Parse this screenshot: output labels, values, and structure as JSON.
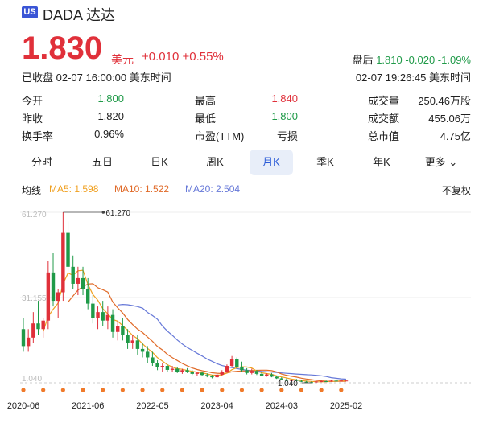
{
  "header": {
    "market_badge": "US",
    "ticker_name": "DADA 达达",
    "price": "1.830",
    "currency": "美元",
    "change": "+0.010 +0.55%",
    "status": "已收盘 02-07 16:00:00 美东时间",
    "after_hours_label": "盘后",
    "after_hours_value": "1.810 -0.020 -1.09%",
    "after_hours_time": "02-07 19:26:45 美东时间"
  },
  "stats": [
    {
      "label": "今开",
      "value": "1.800",
      "color": "#1f9a48"
    },
    {
      "label": "昨收",
      "value": "1.820",
      "color": "#222222"
    },
    {
      "label": "换手率",
      "value": "0.96%",
      "color": "#222222"
    },
    {
      "label": "最高",
      "value": "1.840",
      "color": "#e0303a"
    },
    {
      "label": "最低",
      "value": "1.800",
      "color": "#1f9a48"
    },
    {
      "label": "市盈(TTM)",
      "value": "亏损",
      "color": "#222222"
    },
    {
      "label": "成交量",
      "value": "250.46万股",
      "color": "#222222"
    },
    {
      "label": "成交额",
      "value": "455.06万",
      "color": "#222222"
    },
    {
      "label": "总市值",
      "value": "4.75亿",
      "color": "#222222"
    }
  ],
  "tabs": [
    {
      "label": "分时",
      "active": false
    },
    {
      "label": "五日",
      "active": false
    },
    {
      "label": "日K",
      "active": false
    },
    {
      "label": "周K",
      "active": false
    },
    {
      "label": "月K",
      "active": true
    },
    {
      "label": "季K",
      "active": false
    },
    {
      "label": "年K",
      "active": false
    },
    {
      "label": "更多",
      "active": false
    }
  ],
  "indicators": {
    "label": "均线",
    "ma5": "MA5: 1.598",
    "ma10": "MA10: 1.522",
    "ma20": "MA20: 2.504",
    "adjust": "不复权"
  },
  "colors": {
    "up": "#e0303a",
    "down": "#1f9a48",
    "ma5": "#f0a020",
    "ma10": "#e06a28",
    "ma20": "#6678d8",
    "accent": "#2a5bd7"
  },
  "chart_data": {
    "type": "candlestick",
    "y_tick_labels": [
      "61.270",
      "31.155",
      "1.040"
    ],
    "high_annotation": "61.270",
    "low_annotation": "1.040",
    "x_tick_labels": [
      "2020-06",
      "2021-06",
      "2022-05",
      "2023-04",
      "2024-03",
      "2025-02"
    ],
    "ylim": [
      1.04,
      61.27
    ],
    "candles": [
      {
        "o": 20,
        "h": 24,
        "l": 12,
        "c": 14
      },
      {
        "o": 14,
        "h": 20,
        "l": 12,
        "c": 17
      },
      {
        "o": 17,
        "h": 26,
        "l": 15,
        "c": 22
      },
      {
        "o": 22,
        "h": 30,
        "l": 18,
        "c": 20
      },
      {
        "o": 20,
        "h": 24,
        "l": 17,
        "c": 23
      },
      {
        "o": 23,
        "h": 44,
        "l": 20,
        "c": 40
      },
      {
        "o": 40,
        "h": 47,
        "l": 28,
        "c": 30
      },
      {
        "o": 30,
        "h": 34,
        "l": 24,
        "c": 33
      },
      {
        "o": 33,
        "h": 61.27,
        "l": 30,
        "c": 54
      },
      {
        "o": 54,
        "h": 58,
        "l": 40,
        "c": 42
      },
      {
        "o": 42,
        "h": 46,
        "l": 34,
        "c": 36
      },
      {
        "o": 36,
        "h": 42,
        "l": 32,
        "c": 38
      },
      {
        "o": 38,
        "h": 42,
        "l": 32,
        "c": 34
      },
      {
        "o": 34,
        "h": 38,
        "l": 27,
        "c": 29
      },
      {
        "o": 29,
        "h": 32,
        "l": 22,
        "c": 24
      },
      {
        "o": 24,
        "h": 28,
        "l": 20,
        "c": 26
      },
      {
        "o": 26,
        "h": 30,
        "l": 21,
        "c": 23
      },
      {
        "o": 23,
        "h": 28,
        "l": 20,
        "c": 25
      },
      {
        "o": 25,
        "h": 27,
        "l": 17,
        "c": 19
      },
      {
        "o": 19,
        "h": 23,
        "l": 16,
        "c": 21
      },
      {
        "o": 21,
        "h": 24,
        "l": 16,
        "c": 18
      },
      {
        "o": 18,
        "h": 20,
        "l": 13,
        "c": 15
      },
      {
        "o": 15,
        "h": 18,
        "l": 13,
        "c": 16
      },
      {
        "o": 16,
        "h": 18,
        "l": 11,
        "c": 13
      },
      {
        "o": 13,
        "h": 15,
        "l": 10,
        "c": 12
      },
      {
        "o": 12,
        "h": 14,
        "l": 8,
        "c": 10
      },
      {
        "o": 10,
        "h": 12,
        "l": 7,
        "c": 8
      },
      {
        "o": 8,
        "h": 9,
        "l": 5.5,
        "c": 6.5
      },
      {
        "o": 6.5,
        "h": 8,
        "l": 5,
        "c": 7
      },
      {
        "o": 7,
        "h": 7.5,
        "l": 5,
        "c": 5.6
      },
      {
        "o": 5.6,
        "h": 7,
        "l": 4.8,
        "c": 6
      },
      {
        "o": 6,
        "h": 6.5,
        "l": 4.5,
        "c": 5
      },
      {
        "o": 5,
        "h": 6,
        "l": 4.2,
        "c": 5.5
      },
      {
        "o": 5.5,
        "h": 6.2,
        "l": 4.5,
        "c": 4.8
      },
      {
        "o": 4.8,
        "h": 5.5,
        "l": 3.8,
        "c": 4.2
      },
      {
        "o": 4.2,
        "h": 5,
        "l": 3.6,
        "c": 4.6
      },
      {
        "o": 4.6,
        "h": 5,
        "l": 3.4,
        "c": 3.8
      },
      {
        "o": 3.8,
        "h": 4.4,
        "l": 3,
        "c": 3.4
      },
      {
        "o": 3.4,
        "h": 3.8,
        "l": 2.6,
        "c": 3
      },
      {
        "o": 3,
        "h": 4.2,
        "l": 2.8,
        "c": 3.9
      },
      {
        "o": 3.9,
        "h": 5.5,
        "l": 3.5,
        "c": 5
      },
      {
        "o": 5,
        "h": 7.5,
        "l": 4.5,
        "c": 7
      },
      {
        "o": 7,
        "h": 10.5,
        "l": 6.5,
        "c": 9.5
      },
      {
        "o": 9.5,
        "h": 10,
        "l": 6,
        "c": 6.5
      },
      {
        "o": 6.5,
        "h": 8.5,
        "l": 5,
        "c": 5.5
      },
      {
        "o": 5.5,
        "h": 6.2,
        "l": 4,
        "c": 4.5
      },
      {
        "o": 4.5,
        "h": 6,
        "l": 4,
        "c": 5.2
      },
      {
        "o": 5.2,
        "h": 5.6,
        "l": 3.8,
        "c": 4.2
      },
      {
        "o": 4.2,
        "h": 4.8,
        "l": 3.4,
        "c": 3.6
      },
      {
        "o": 3.6,
        "h": 4.4,
        "l": 3.2,
        "c": 4
      },
      {
        "o": 4,
        "h": 4.5,
        "l": 3,
        "c": 3.2
      },
      {
        "o": 3.2,
        "h": 3.6,
        "l": 2.4,
        "c": 2.6
      },
      {
        "o": 2.6,
        "h": 3,
        "l": 2,
        "c": 2.2
      },
      {
        "o": 2.2,
        "h": 2.6,
        "l": 1.6,
        "c": 1.8
      },
      {
        "o": 1.8,
        "h": 2.2,
        "l": 1.5,
        "c": 2
      },
      {
        "o": 2,
        "h": 2.4,
        "l": 1.6,
        "c": 1.7
      },
      {
        "o": 1.7,
        "h": 2,
        "l": 1.3,
        "c": 1.4
      },
      {
        "o": 1.4,
        "h": 1.7,
        "l": 1.1,
        "c": 1.25
      },
      {
        "o": 1.25,
        "h": 1.5,
        "l": 1.04,
        "c": 1.2
      },
      {
        "o": 1.2,
        "h": 1.6,
        "l": 1.1,
        "c": 1.5
      },
      {
        "o": 1.5,
        "h": 1.9,
        "l": 1.3,
        "c": 1.6
      },
      {
        "o": 1.6,
        "h": 1.8,
        "l": 1.4,
        "c": 1.5
      },
      {
        "o": 1.5,
        "h": 1.9,
        "l": 1.4,
        "c": 1.8
      },
      {
        "o": 1.8,
        "h": 2.1,
        "l": 1.6,
        "c": 1.7
      },
      {
        "o": 1.7,
        "h": 1.9,
        "l": 1.5,
        "c": 1.82
      },
      {
        "o": 1.82,
        "h": 1.84,
        "l": 1.8,
        "c": 1.83
      }
    ],
    "ma5_last": 1.598,
    "ma10_last": 1.522,
    "ma20_last": 2.504
  }
}
